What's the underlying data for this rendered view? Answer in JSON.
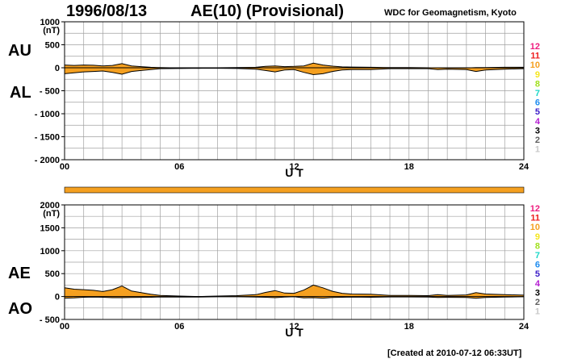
{
  "header": {
    "date": "1996/08/13",
    "title": "AE(10) (Provisional)",
    "source": "WDC for Geomagnetism, Kyoto"
  },
  "footer": {
    "created": "[Created at 2010-07-12 06:33UT]"
  },
  "labels": {
    "au": "AU",
    "al": "AL",
    "ae": "AE",
    "ao": "AO",
    "unit": "(nT)",
    "ut": "U T"
  },
  "colors": {
    "fill": "#f5a020",
    "line": "#000000",
    "grid": "#a0a0a0"
  },
  "station_counts": {
    "labels": [
      "12",
      "11",
      "10",
      "9",
      "8",
      "7",
      "6",
      "5",
      "4",
      "3",
      "2",
      "1"
    ],
    "colors": [
      "#ee1c7e",
      "#ee1c1c",
      "#f5a020",
      "#f5e61e",
      "#a0e01e",
      "#1ed8c8",
      "#1e8cf0",
      "#3c1ec8",
      "#b41ed2",
      "#000000",
      "#606060",
      "#c8c8c8"
    ]
  },
  "coverage_bar": {
    "available_from_hour": 0,
    "available_to_hour": 24,
    "count_color": "#f5a020"
  },
  "chart_data": [
    {
      "type": "area",
      "name": "AU/AL",
      "x": [
        0,
        0.5,
        1,
        1.5,
        2,
        2.5,
        3,
        3.5,
        4,
        4.5,
        5,
        6,
        7,
        8,
        9,
        10,
        10.5,
        11,
        11.5,
        12,
        12.5,
        13,
        13.5,
        14,
        14.5,
        15,
        16,
        17,
        18,
        19,
        19.5,
        20,
        21,
        21.5,
        22,
        23,
        24
      ],
      "series": [
        {
          "name": "AU",
          "values": [
            60,
            50,
            60,
            55,
            40,
            50,
            90,
            40,
            25,
            10,
            5,
            -5,
            -10,
            0,
            5,
            10,
            30,
            40,
            25,
            30,
            40,
            100,
            60,
            35,
            20,
            15,
            10,
            5,
            5,
            0,
            0,
            -5,
            -5,
            5,
            5,
            10,
            10
          ]
        },
        {
          "name": "AL",
          "values": [
            -130,
            -110,
            -90,
            -80,
            -70,
            -100,
            -140,
            -80,
            -60,
            -40,
            -20,
            -15,
            -10,
            -10,
            -15,
            -30,
            -60,
            -90,
            -50,
            -40,
            -100,
            -150,
            -130,
            -80,
            -50,
            -40,
            -40,
            -20,
            -20,
            -20,
            -40,
            -30,
            -40,
            -80,
            -50,
            -30,
            -20
          ]
        }
      ],
      "xlim": [
        0,
        24
      ],
      "ylim": [
        -2000,
        1000
      ],
      "xticks": [
        "00",
        "06",
        "12",
        "18",
        "24"
      ],
      "yticks": [
        "1000",
        "500",
        "0",
        "- 500",
        "- 1000",
        "- 1500",
        "- 2000"
      ],
      "xlabel": "U T",
      "ylabel": "(nT)",
      "grid": true
    },
    {
      "type": "area",
      "name": "AE/AO",
      "x": [
        0,
        0.5,
        1,
        1.5,
        2,
        2.5,
        3,
        3.5,
        4,
        4.5,
        5,
        6,
        7,
        8,
        9,
        10,
        10.5,
        11,
        11.5,
        12,
        12.5,
        13,
        13.5,
        14,
        14.5,
        15,
        16,
        17,
        18,
        19,
        19.5,
        20,
        21,
        21.5,
        22,
        23,
        24
      ],
      "series": [
        {
          "name": "AE",
          "values": [
            190,
            160,
            150,
            135,
            110,
            150,
            230,
            120,
            85,
            50,
            25,
            10,
            0,
            10,
            20,
            40,
            90,
            130,
            75,
            70,
            140,
            250,
            190,
            115,
            70,
            55,
            50,
            25,
            25,
            20,
            40,
            25,
            35,
            85,
            55,
            40,
            30
          ]
        },
        {
          "name": "AO",
          "values": [
            -35,
            -30,
            -15,
            -12,
            -15,
            -25,
            -25,
            -20,
            -18,
            -15,
            -8,
            -10,
            -10,
            -5,
            -5,
            -10,
            -15,
            -25,
            -12,
            -5,
            -30,
            -25,
            -35,
            -22,
            -15,
            -12,
            -15,
            -8,
            -8,
            -10,
            -20,
            -18,
            -22,
            -38,
            -22,
            -10,
            -5
          ]
        }
      ],
      "xlim": [
        0,
        24
      ],
      "ylim": [
        -500,
        2000
      ],
      "xticks": [
        "00",
        "06",
        "12",
        "18",
        "24"
      ],
      "yticks": [
        "2000",
        "1500",
        "1000",
        "500",
        "0",
        "- 500"
      ],
      "xlabel": "U T",
      "ylabel": "(nT)",
      "grid": true
    }
  ]
}
